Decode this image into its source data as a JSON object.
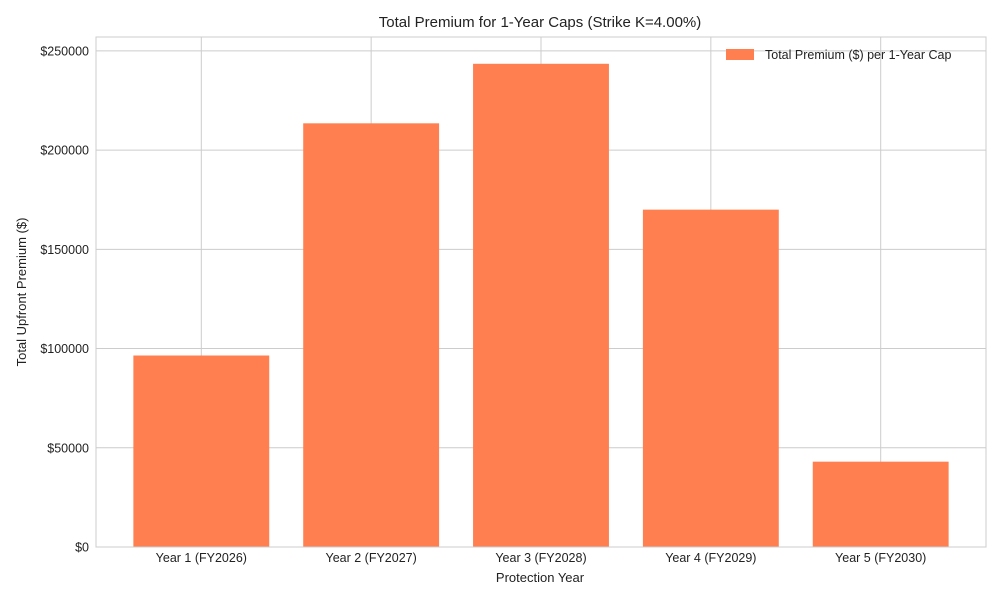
{
  "chart_data": {
    "type": "bar",
    "title": "Total Premium for 1-Year Caps (Strike K=4.00%)",
    "xlabel": "Protection Year",
    "ylabel": "Total Upfront Premium ($)",
    "categories": [
      "Year 1 (FY2026)",
      "Year 2 (FY2027)",
      "Year 3 (FY2028)",
      "Year 4 (FY2029)",
      "Year 5 (FY2030)"
    ],
    "series": [
      {
        "name": "Total Premium ($) per 1-Year Cap",
        "color": "#ff7f50",
        "values": [
          96500,
          213500,
          243500,
          170000,
          43000
        ]
      }
    ],
    "ylim": [
      0,
      257000
    ],
    "yticks": [
      0,
      50000,
      100000,
      150000,
      200000,
      250000
    ],
    "ytick_labels": [
      "$0",
      "$50000",
      "$100000",
      "$150000",
      "$200000",
      "$250000"
    ],
    "grid": true,
    "legend_position": "top-right"
  }
}
